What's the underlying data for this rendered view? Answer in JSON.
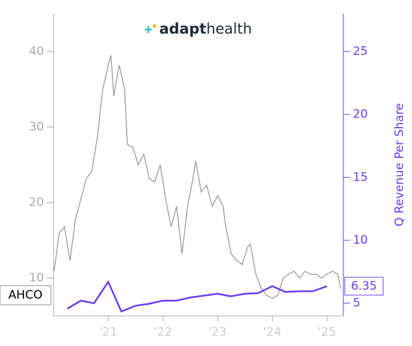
{
  "chart_data": {
    "type": "line",
    "logo_bold": "adapt",
    "logo_light": "health",
    "ticker": "AHCO",
    "y2_label": "Q Revenue Per Share",
    "xlim": [
      2020.0,
      2025.3
    ],
    "xticks": [
      {
        "value": 2021,
        "label": "'21"
      },
      {
        "value": 2022,
        "label": "'22"
      },
      {
        "value": 2023,
        "label": "'23"
      },
      {
        "value": 2024,
        "label": "'24"
      },
      {
        "value": 2025,
        "label": "'25"
      }
    ],
    "ylim": [
      5,
      45
    ],
    "yticks": [
      10,
      20,
      30,
      40
    ],
    "y2lim": [
      4,
      28
    ],
    "y2ticks": [
      5,
      10,
      15,
      20,
      25
    ],
    "series": [
      {
        "color": "#999999",
        "x": [
          2020.01,
          2020.1,
          2020.2,
          2020.3,
          2020.4,
          2020.5,
          2020.6,
          2020.7,
          2020.8,
          2020.9,
          2021.0,
          2021.05,
          2021.1,
          2021.2,
          2021.3,
          2021.35,
          2021.45,
          2021.55,
          2021.65,
          2021.75,
          2021.85,
          2021.95,
          2022.05,
          2022.15,
          2022.25,
          2022.35,
          2022.45,
          2022.55,
          2022.6,
          2022.7,
          2022.8,
          2022.9,
          2023.0,
          2023.1,
          2023.15,
          2023.25,
          2023.35,
          2023.45,
          2023.55,
          2023.6,
          2023.7,
          2023.8,
          2023.9,
          2024.0,
          2024.1,
          2024.2,
          2024.3,
          2024.4,
          2024.5,
          2024.6,
          2024.7,
          2024.8,
          2024.9,
          2025.0,
          2025.1,
          2025.2,
          2025.25
        ],
        "values": [
          10.9,
          15.9,
          16.8,
          12.3,
          17.7,
          20.5,
          23.2,
          24.1,
          28.6,
          35,
          38.2,
          39.5,
          34.1,
          38.2,
          35,
          27.7,
          27.3,
          25,
          26.4,
          23.2,
          22.7,
          25,
          20.5,
          16.8,
          19.5,
          13.2,
          19.5,
          23.2,
          25.5,
          21.4,
          22.3,
          19.5,
          20.9,
          19.5,
          16.8,
          13.2,
          12.3,
          11.8,
          14.1,
          14.5,
          10.5,
          8.6,
          7.7,
          7.3,
          7.7,
          10,
          10.5,
          10.9,
          10,
          10.9,
          10.5,
          10.5,
          10,
          10.5,
          10.9,
          10.5,
          8.6
        ]
      },
      {
        "color": "#6a3df0",
        "axis": "y2",
        "x": [
          2020.25,
          2020.5,
          2020.74,
          2021.0,
          2021.24,
          2021.5,
          2021.74,
          2022.0,
          2022.24,
          2022.5,
          2022.74,
          2023.0,
          2023.24,
          2023.5,
          2023.74,
          2024.0,
          2024.24,
          2024.5,
          2024.74,
          2025.0
        ],
        "values": [
          4.56,
          5.2,
          5.0,
          6.7,
          4.35,
          4.8,
          4.95,
          5.2,
          5.2,
          5.45,
          5.6,
          5.75,
          5.55,
          5.75,
          5.8,
          6.35,
          5.9,
          5.95,
          5.95,
          6.35
        ]
      }
    ]
  }
}
